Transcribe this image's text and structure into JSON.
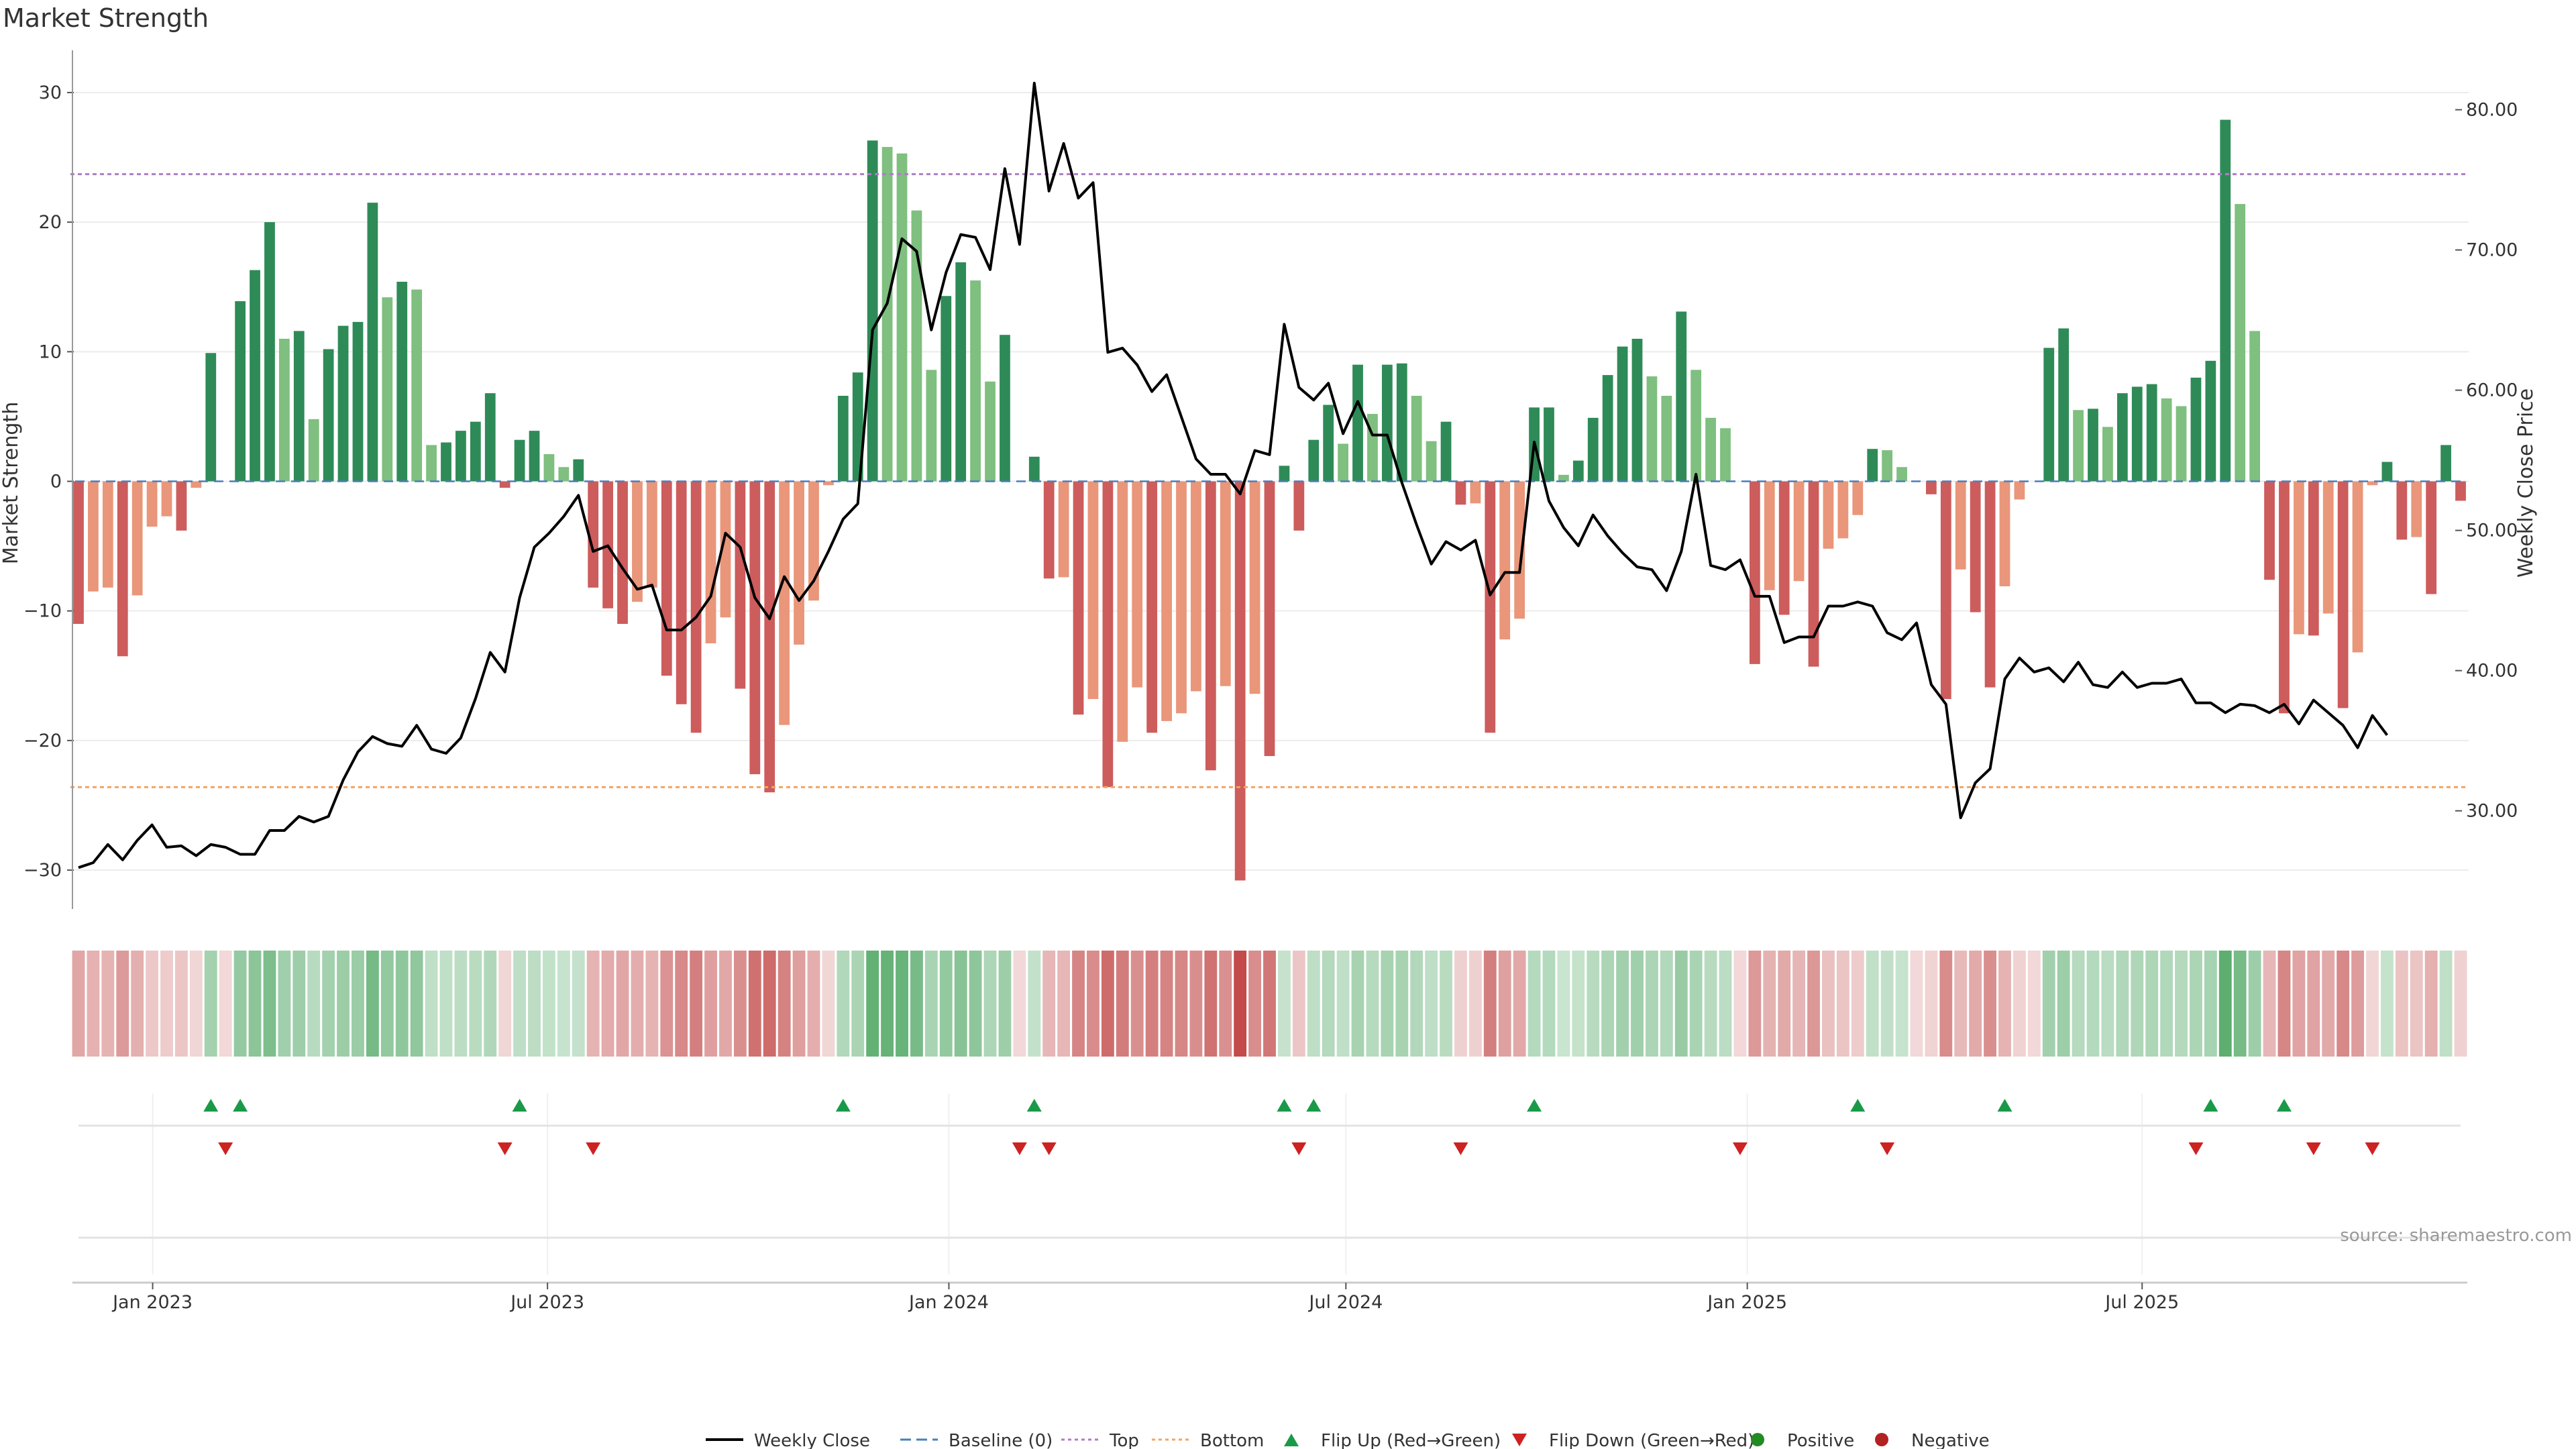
{
  "chart_data": {
    "type": "bar",
    "title": "Market Strength",
    "ylabel": "Market Strength",
    "ylabel_right": "Weekly Close Price",
    "source": "source: sharemaestro.com",
    "ylim": [
      -33,
      33
    ],
    "ylim_right": [
      23,
      84
    ],
    "yticks": [
      -30,
      -20,
      -10,
      0,
      10,
      20,
      30
    ],
    "yticks_right_labels": [
      "30.00",
      "40.00",
      "50.00",
      "60.00",
      "70.00",
      "80.00"
    ],
    "top_line": 23.7,
    "bottom_line": -23.6,
    "x_start": "2022-11-28",
    "x_end": "2025-11-24",
    "xticks": [
      {
        "date": "2023-01-01",
        "label": "Jan 2023"
      },
      {
        "date": "2023-07-01",
        "label": "Jul 2023"
      },
      {
        "date": "2024-01-01",
        "label": "Jan 2024"
      },
      {
        "date": "2024-07-01",
        "label": "Jul 2024"
      },
      {
        "date": "2025-01-01",
        "label": "Jan 2025"
      },
      {
        "date": "2025-07-01",
        "label": "Jul 2025"
      }
    ],
    "strength": [
      -11,
      -8.5,
      -8.2,
      -13.5,
      -8.8,
      -3.5,
      -2.7,
      -3.8,
      -0.5,
      9.9,
      0,
      13.9,
      16.3,
      20.0,
      11.0,
      11.6,
      4.8,
      10.2,
      12.0,
      12.3,
      21.5,
      14.2,
      15.4,
      14.8,
      2.8,
      3.0,
      3.9,
      4.6,
      6.8,
      -0.5,
      3.2,
      3.9,
      2.1,
      1.1,
      1.7,
      -8.2,
      -9.8,
      -11.0,
      -9.3,
      -8.2,
      -15.0,
      -17.2,
      -19.4,
      -12.5,
      -10.5,
      -16.0,
      -22.6,
      -24.0,
      -18.8,
      -12.6,
      -9.2,
      -0.3,
      6.6,
      8.4,
      26.3,
      25.8,
      25.3,
      20.9,
      8.6,
      14.3,
      16.9,
      15.5,
      7.7,
      11.3,
      0,
      1.9,
      -7.5,
      -7.4,
      -18.0,
      -16.8,
      -23.6,
      -20.1,
      -15.9,
      -19.4,
      -18.5,
      -17.9,
      -16.2,
      -22.3,
      -15.8,
      -30.8,
      -16.4,
      -21.2,
      1.2,
      -3.8,
      3.2,
      5.9,
      2.9,
      9.0,
      5.2,
      9.0,
      9.1,
      6.6,
      3.1,
      4.6,
      -1.8,
      -1.7,
      -19.4,
      -12.2,
      -10.6,
      5.7,
      5.7,
      0.5,
      1.6,
      4.9,
      8.2,
      10.4,
      11.0,
      8.1,
      6.6,
      13.1,
      8.6,
      4.9,
      4.1,
      0,
      -14.1,
      -8.4,
      -10.3,
      -7.7,
      -14.3,
      -5.2,
      -4.4,
      -2.6,
      2.5,
      2.4,
      1.1,
      0,
      -1.0,
      -16.8,
      -6.8,
      -10.1,
      -15.9,
      -8.1,
      -1.4,
      0,
      10.3,
      11.8,
      5.5,
      5.6,
      4.2,
      6.8,
      7.3,
      7.5,
      6.4,
      5.8,
      8.0,
      9.3,
      27.9,
      21.4,
      11.6,
      -7.6,
      -17.9,
      -11.8,
      -11.9,
      -10.2,
      -17.5,
      -13.2,
      -0.3,
      1.5,
      -4.5,
      -4.3,
      -8.7,
      2.8,
      -1.5
    ],
    "close": [
      25.95,
      26.3,
      27.6,
      26.5,
      27.9,
      29.0,
      27.4,
      27.5,
      26.8,
      27.6,
      27.4,
      26.9,
      26.9,
      28.6,
      28.6,
      29.6,
      29.2,
      29.6,
      32.2,
      34.2,
      35.3,
      34.8,
      34.6,
      36.1,
      34.4,
      34.1,
      35.2,
      38.0,
      41.3,
      39.9,
      45.2,
      48.8,
      49.8,
      51.0,
      52.5,
      48.5,
      48.9,
      47.3,
      45.8,
      46.1,
      42.9,
      42.9,
      43.8,
      45.3,
      49.8,
      48.8,
      45.2,
      43.7,
      46.7,
      45.0,
      46.4,
      48.5,
      50.8,
      51.9,
      64.3,
      66.2,
      70.8,
      69.9,
      64.3,
      68.4,
      71.1,
      70.9,
      68.6,
      75.8,
      70.4,
      81.9,
      74.2,
      77.6,
      73.7,
      74.8,
      62.7,
      63.0,
      61.8,
      59.9,
      61.1,
      58.1,
      55.1,
      54.0,
      54.0,
      52.6,
      55.7,
      55.4,
      64.7,
      60.2,
      59.3,
      60.5,
      56.9,
      59.2,
      56.8,
      56.8,
      53.4,
      50.4,
      47.6,
      49.2,
      48.6,
      49.3,
      45.4,
      47.0,
      47.0,
      56.3,
      52.1,
      50.2,
      48.9,
      51.1,
      49.6,
      48.4,
      47.4,
      47.2,
      45.7,
      48.5,
      54.0,
      47.5,
      47.2,
      47.9,
      45.3,
      45.3,
      42.0,
      42.4,
      42.4,
      44.6,
      44.6,
      44.9,
      44.6,
      42.7,
      42.2,
      43.4,
      39.0,
      37.6,
      29.5,
      32.0,
      33.0,
      39.4,
      40.9,
      39.9,
      40.2,
      39.2,
      40.6,
      39.0,
      38.8,
      39.9,
      38.8,
      39.1,
      39.1,
      39.4,
      37.7,
      37.7,
      37.0,
      37.6,
      37.5,
      37.0,
      37.6,
      36.2,
      37.9,
      37.0,
      36.1,
      34.5,
      36.8,
      35.4
    ],
    "flip_up_index": [
      9,
      11,
      30,
      52,
      65,
      82,
      84,
      99,
      121,
      131,
      145,
      150
    ],
    "flip_down_index": [
      10,
      29,
      35,
      64,
      66,
      83,
      94,
      113,
      123,
      144,
      152,
      156
    ],
    "legend": [
      "Weekly Close",
      "Baseline (0)",
      "Top",
      "Bottom",
      "Flip Up (Red→Green)",
      "Flip Down (Green→Red)",
      "Positive",
      "Negative"
    ],
    "colors": {
      "strong_green": "#2e8b57",
      "light_green": "#7fbf7f",
      "strong_red": "#cd5c5c",
      "light_red": "#e9967a",
      "close_line": "#000000",
      "baseline": "#4a7ebb",
      "top": "#b07cc6",
      "bottom": "#f4a460",
      "flip_up": "#1a9a48",
      "flip_down": "#cc2222",
      "positive": "#228b22",
      "negative": "#b22222"
    }
  }
}
